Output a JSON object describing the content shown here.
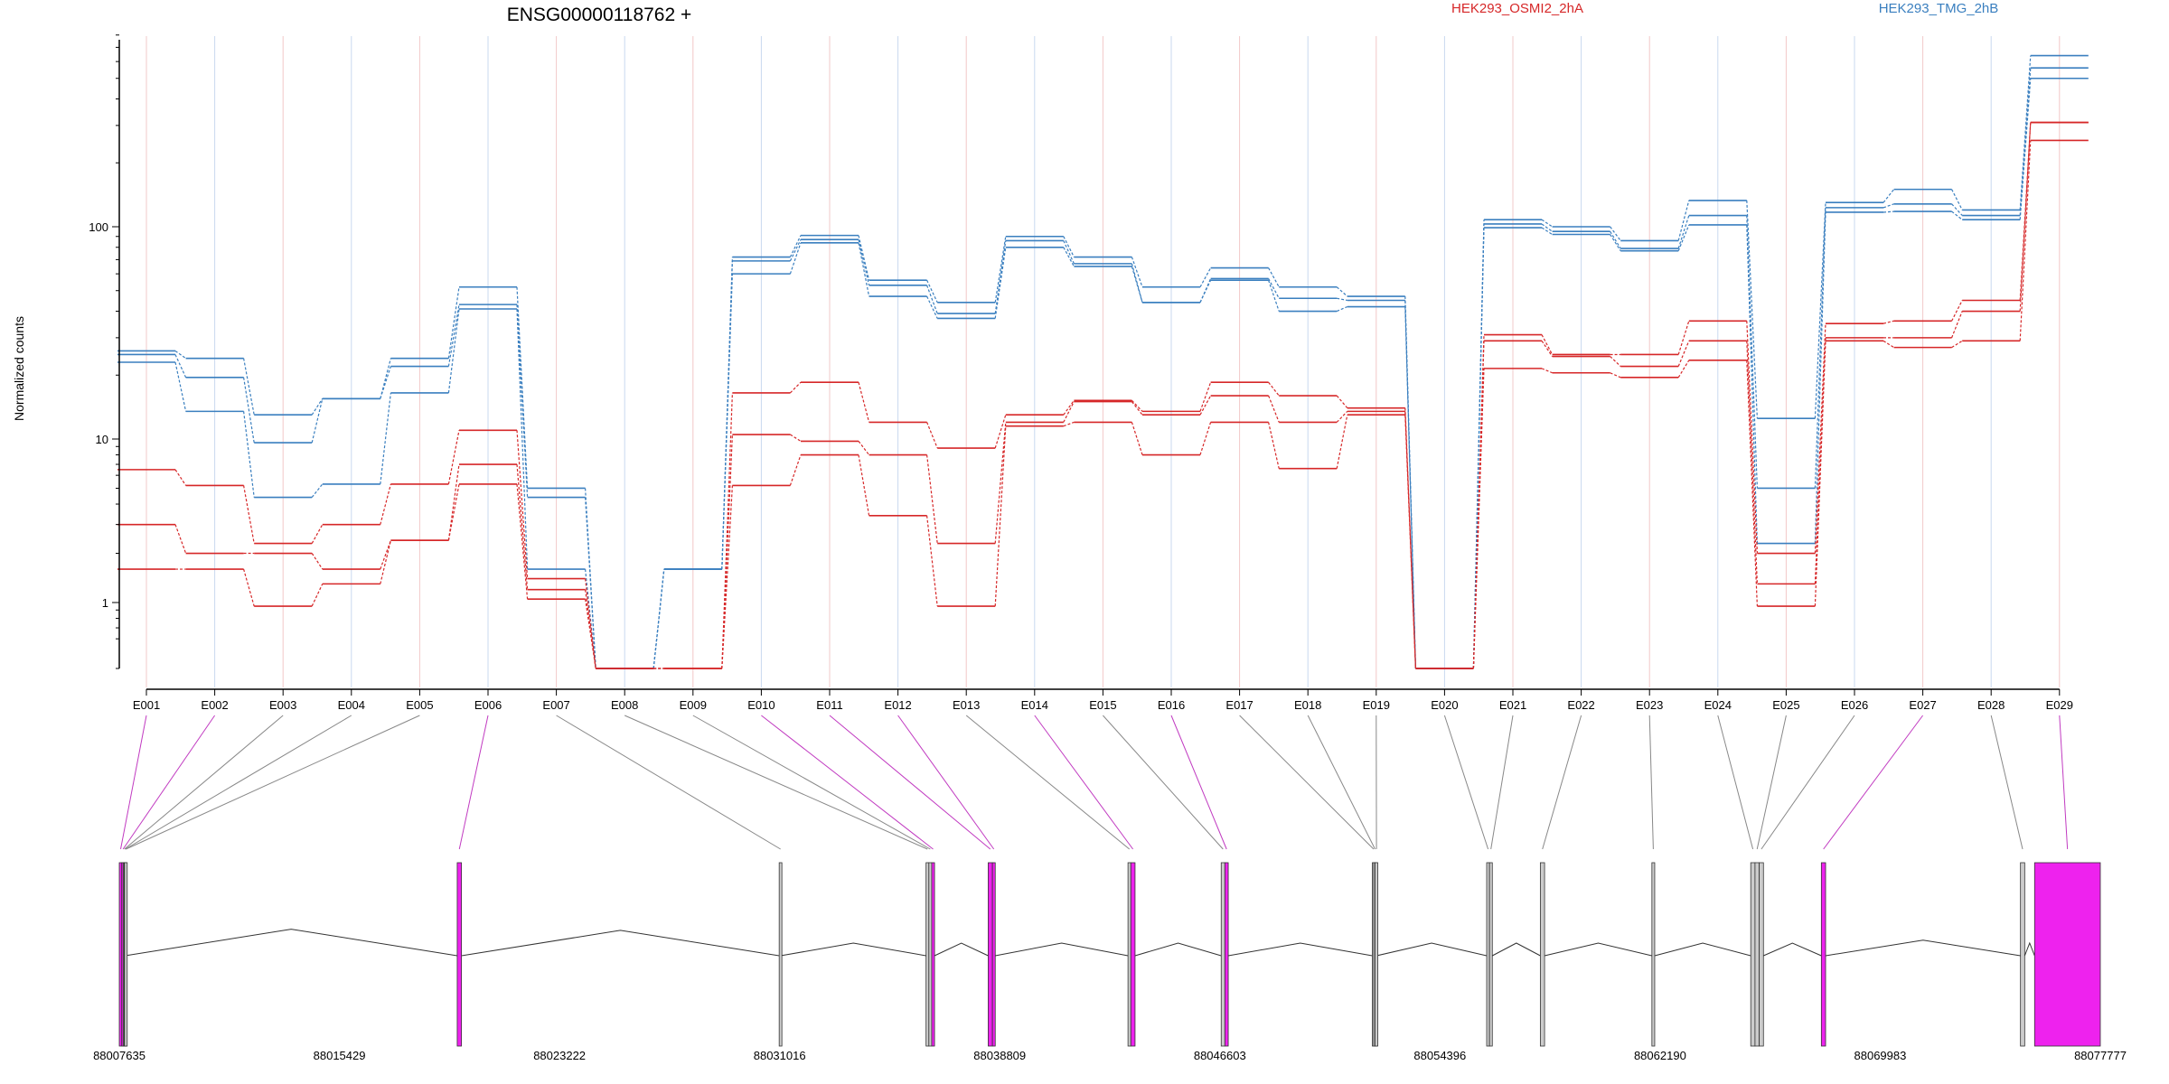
{
  "chart_data": {
    "type": "line",
    "title": "ENSG00000118762 +",
    "ylabel": "Normalized counts",
    "yscale": "log",
    "yticks": [
      1,
      10,
      100
    ],
    "ylim": [
      0.5,
      800
    ],
    "colors": {
      "HEK293_OSMI2_2hA": "#d62728",
      "HEK293_TMG_2hB": "#3a7fbf",
      "exon_highlight": "#ee22ee",
      "exon_plain": "#cccccc"
    },
    "legend": [
      {
        "label": "HEK293_OSMI2_2hA",
        "color": "#d62728",
        "position": "top-center"
      },
      {
        "label": "HEK293_TMG_2hB",
        "color": "#3a7fbf",
        "position": "top-right"
      }
    ],
    "categories": [
      "E001",
      "E002",
      "E003",
      "E004",
      "E005",
      "E006",
      "E007",
      "E008",
      "E009",
      "E010",
      "E011",
      "E012",
      "E013",
      "E014",
      "E015",
      "E016",
      "E017",
      "E018",
      "E019",
      "E020",
      "E021",
      "E022",
      "E023",
      "E024",
      "E025",
      "E026",
      "E027",
      "E028",
      "E029"
    ],
    "series": [
      {
        "group": "HEK293_TMG_2hB",
        "values": [
          26,
          24,
          13,
          15.5,
          24,
          52,
          5,
          0.5,
          1.6,
          72,
          91,
          56,
          44,
          90,
          72,
          52,
          64,
          52,
          47,
          0.5,
          108,
          100,
          86,
          133,
          12.5,
          130,
          150,
          120,
          640
        ]
      },
      {
        "group": "HEK293_TMG_2hB",
        "values": [
          25,
          19.5,
          9.5,
          15.5,
          22,
          43,
          4.4,
          0.5,
          1.6,
          69,
          87,
          53,
          39,
          86,
          67,
          44,
          57,
          46,
          45,
          0.5,
          103,
          95,
          79,
          113,
          5,
          123,
          128,
          113,
          560
        ]
      },
      {
        "group": "HEK293_TMG_2hB",
        "values": [
          23,
          13.5,
          4.4,
          5.3,
          16.5,
          41,
          1.6,
          0.5,
          1.6,
          60,
          84,
          47,
          37,
          80,
          65,
          44,
          56,
          40,
          42,
          0.5,
          99,
          92,
          77,
          102,
          2.3,
          117,
          118,
          108,
          500
        ]
      },
      {
        "group": "HEK293_OSMI2_2hA",
        "values": [
          6.5,
          5.2,
          2.3,
          3,
          5.3,
          11,
          1.4,
          0.5,
          0.5,
          16.5,
          18.5,
          12,
          8.8,
          13,
          15.2,
          13.5,
          18.5,
          16,
          14,
          0.5,
          31,
          25,
          25,
          36,
          2.0,
          35,
          36,
          45,
          310
        ]
      },
      {
        "group": "HEK293_OSMI2_2hA",
        "values": [
          3,
          2.0,
          2.0,
          1.6,
          2.4,
          7,
          1.2,
          0.5,
          0.5,
          10.5,
          9.7,
          8,
          2.3,
          12,
          15,
          13,
          16,
          12,
          13.5,
          0.5,
          29,
          24.5,
          22,
          29,
          1.3,
          30,
          30,
          40,
          310
        ]
      },
      {
        "group": "HEK293_OSMI2_2hA",
        "values": [
          1.6,
          1.6,
          0.95,
          1.3,
          2.4,
          5.3,
          1.05,
          0.5,
          0.5,
          5.2,
          8,
          3.4,
          0.95,
          11.5,
          12,
          8,
          12,
          6.6,
          13,
          0.5,
          21.5,
          20.5,
          19.5,
          23.5,
          0.95,
          29,
          27,
          29,
          255
        ]
      }
    ],
    "gene_model": {
      "genomic_ticks": [
        "88007635",
        "88015429",
        "88023222",
        "88031016",
        "88038809",
        "88046603",
        "88054396",
        "88062190",
        "88069983",
        "88077777"
      ],
      "exons": [
        {
          "id": "E001",
          "start": 88007635,
          "end": 88007720,
          "highlight": true
        },
        {
          "id": "E002",
          "start": 88007720,
          "end": 88007770,
          "highlight": true
        },
        {
          "id": "E003",
          "start": 88007770,
          "end": 88007800,
          "highlight": false
        },
        {
          "id": "E004",
          "start": 88007800,
          "end": 88007820,
          "highlight": false
        },
        {
          "id": "E005",
          "start": 88007820,
          "end": 88007840,
          "highlight": false
        },
        {
          "id": "E006",
          "start": 88019600,
          "end": 88019750,
          "highlight": true
        },
        {
          "id": "E007",
          "start": 88031000,
          "end": 88031050,
          "highlight": false
        },
        {
          "id": "E008",
          "start": 88036200,
          "end": 88036300,
          "highlight": false
        },
        {
          "id": "E009",
          "start": 88036300,
          "end": 88036400,
          "highlight": false
        },
        {
          "id": "E010",
          "start": 88036400,
          "end": 88036500,
          "highlight": true
        },
        {
          "id": "E011",
          "start": 88038400,
          "end": 88038550,
          "highlight": true
        },
        {
          "id": "E012",
          "start": 88038550,
          "end": 88038650,
          "highlight": true
        },
        {
          "id": "E013",
          "start": 88043350,
          "end": 88043450,
          "highlight": false
        },
        {
          "id": "E014",
          "start": 88043450,
          "end": 88043600,
          "highlight": true
        },
        {
          "id": "E015",
          "start": 88046650,
          "end": 88046780,
          "highlight": false
        },
        {
          "id": "E016",
          "start": 88046780,
          "end": 88046900,
          "highlight": true
        },
        {
          "id": "E017",
          "start": 88052000,
          "end": 88052050,
          "highlight": false
        },
        {
          "id": "E018",
          "start": 88052050,
          "end": 88052100,
          "highlight": false
        },
        {
          "id": "E019",
          "start": 88052100,
          "end": 88052150,
          "highlight": false
        },
        {
          "id": "E020",
          "start": 88056050,
          "end": 88056150,
          "highlight": false
        },
        {
          "id": "E021",
          "start": 88056150,
          "end": 88056250,
          "highlight": false
        },
        {
          "id": "E022",
          "start": 88057950,
          "end": 88058100,
          "highlight": false
        },
        {
          "id": "E023",
          "start": 88061900,
          "end": 88062000,
          "highlight": false
        },
        {
          "id": "E024",
          "start": 88065400,
          "end": 88065550,
          "highlight": false
        },
        {
          "id": "E025",
          "start": 88065550,
          "end": 88065700,
          "highlight": false
        },
        {
          "id": "E026",
          "start": 88065700,
          "end": 88065850,
          "highlight": false
        },
        {
          "id": "E027",
          "start": 88067900,
          "end": 88068050,
          "highlight": true
        },
        {
          "id": "E028",
          "start": 88074950,
          "end": 88075100,
          "highlight": false
        },
        {
          "id": "E029",
          "start": 88075450,
          "end": 88077777,
          "highlight": true
        }
      ]
    }
  }
}
